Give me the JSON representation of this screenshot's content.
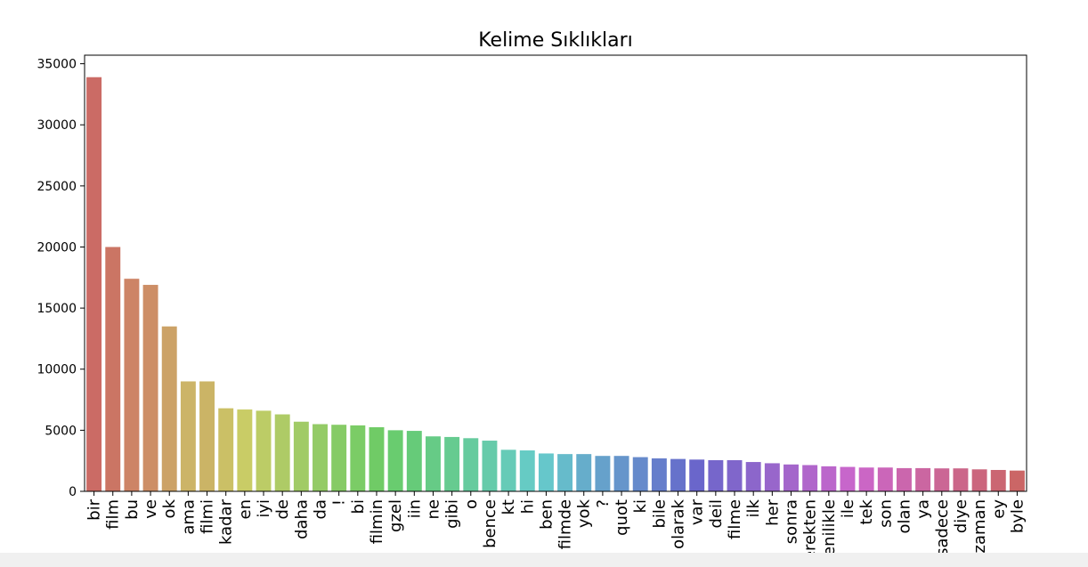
{
  "chart_data": {
    "type": "bar",
    "title": "Kelime Sıklıkları",
    "xlabel": "",
    "ylabel": "",
    "ylim": [
      0,
      35700
    ],
    "yticks": [
      0,
      5000,
      10000,
      15000,
      20000,
      25000,
      30000,
      35000
    ],
    "grid": false,
    "categories": [
      "bir",
      "film",
      "bu",
      "ve",
      "ok",
      "ama",
      "filmi",
      "kadar",
      "en",
      "iyi",
      "de",
      "daha",
      "da",
      "!",
      "bi",
      "filmin",
      "gzel",
      "iin",
      "ne",
      "gibi",
      "o",
      "bence",
      "kt",
      "hi",
      "ben",
      "filmde",
      "yok",
      "?",
      "quot",
      "ki",
      "bile",
      "olarak",
      "var",
      "deil",
      "filme",
      "ilk",
      "her",
      "sonra",
      "gerekten",
      "izlenilikle",
      "ile",
      "tek",
      "son",
      "olan",
      "ya",
      "sadece",
      "diye",
      "zaman",
      "ey",
      "byle"
    ],
    "values": [
      33900,
      20000,
      17400,
      16900,
      13500,
      9000,
      9000,
      6800,
      6700,
      6600,
      6300,
      5700,
      5500,
      5450,
      5400,
      5250,
      5000,
      4950,
      4500,
      4450,
      4350,
      4150,
      3400,
      3350,
      3100,
      3050,
      3050,
      2900,
      2900,
      2800,
      2700,
      2650,
      2600,
      2550,
      2550,
      2400,
      2300,
      2200,
      2150,
      2050,
      2000,
      1950,
      1950,
      1900,
      1900,
      1880,
      1880,
      1800,
      1750,
      1700
    ],
    "colors": [
      "#cb6b65",
      "#cb7564",
      "#cd8466",
      "#cd8e66",
      "#cca267",
      "#ccb468",
      "#cbb466",
      "#cbc066",
      "#c9cc66",
      "#bccc66",
      "#aecb66",
      "#a1cb66",
      "#94cb66",
      "#86cb66",
      "#7bcc66",
      "#70cb66",
      "#69cc6f",
      "#66cb79",
      "#66cb86",
      "#66cb90",
      "#66cb9e",
      "#66cbaa",
      "#66cbb7",
      "#66cbc4",
      "#66c7cb",
      "#66bbcb",
      "#66adcb",
      "#66a1cb",
      "#6695cb",
      "#668acb",
      "#667ecb",
      "#6672cb",
      "#6a66cb",
      "#7666cb",
      "#8066cb",
      "#8c66cb",
      "#9866cb",
      "#a466cb",
      "#b066cb",
      "#bb66cb",
      "#c766cb",
      "#cb66c5",
      "#cb66b9",
      "#cb66ad",
      "#cb66a1",
      "#cb6695",
      "#cb6689",
      "#cb667d",
      "#cb6672",
      "#cb6666"
    ]
  }
}
